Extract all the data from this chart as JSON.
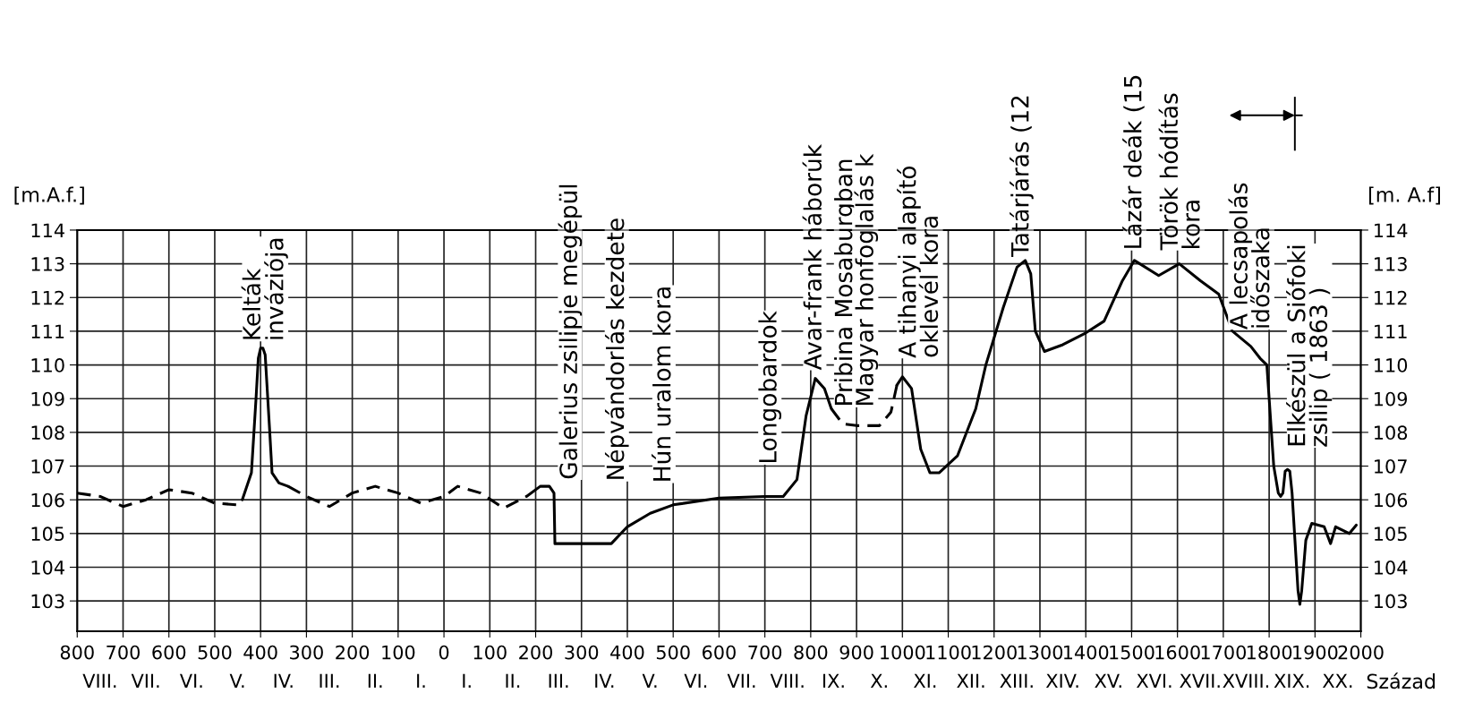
{
  "chart_data": {
    "type": "line",
    "ylabel": "[m.A.f.]",
    "y2label": "[m. A.f]",
    "xlim": [
      -800,
      2000
    ],
    "xticks": [
      {
        "value": -800,
        "label": "800"
      },
      {
        "value": -700,
        "label": "700"
      },
      {
        "value": -600,
        "label": "600"
      },
      {
        "value": -500,
        "label": "500"
      },
      {
        "value": -400,
        "label": "400"
      },
      {
        "value": -300,
        "label": "300"
      },
      {
        "value": -200,
        "label": "200"
      },
      {
        "value": -100,
        "label": "100"
      },
      0,
      100,
      200,
      300,
      400,
      500,
      600,
      700,
      800,
      900,
      1000,
      1100,
      1200,
      1300,
      1400,
      1500,
      1600,
      1700,
      1800,
      1900,
      2000
    ],
    "ylim": [
      102.1,
      114
    ],
    "yticks": [
      103,
      104,
      105,
      106,
      107,
      108,
      109,
      110,
      111,
      112,
      113,
      114
    ],
    "y2lim": [
      102.1,
      114
    ],
    "y2ticks": [
      103,
      104,
      105,
      106,
      107,
      108,
      109,
      110,
      111,
      112,
      113,
      114
    ],
    "grid": true,
    "series": [
      {
        "color": "#000000",
        "line_style": "dashed",
        "x": [
          -800,
          -750,
          -700,
          -650,
          -600,
          -550,
          -500,
          -450,
          -440
        ],
        "values": [
          106.2,
          106.1,
          105.8,
          106.0,
          106.3,
          106.2,
          105.9,
          105.85,
          106.0
        ]
      },
      {
        "color": "#000000",
        "line_style": "solid",
        "x": [
          -440,
          -420,
          -410,
          -405,
          -400,
          -395,
          -390,
          -380,
          -375,
          -360,
          -340
        ],
        "values": [
          106.0,
          106.8,
          109.0,
          110.2,
          110.5,
          110.5,
          110.3,
          108.0,
          106.8,
          106.5,
          106.4
        ]
      },
      {
        "color": "#000000",
        "line_style": "dashed",
        "x": [
          -340,
          -300,
          -250,
          -200,
          -150,
          -100,
          -50,
          0,
          30,
          80,
          130,
          180
        ],
        "values": [
          106.4,
          106.1,
          105.8,
          106.2,
          106.4,
          106.2,
          105.9,
          106.1,
          106.4,
          106.2,
          105.75,
          106.1
        ]
      },
      {
        "color": "#000000",
        "line_style": "solid",
        "x": [
          180,
          210,
          230,
          240,
          242,
          300,
          365,
          400,
          450,
          500,
          600,
          700,
          740,
          770,
          790,
          810,
          830,
          845
        ],
        "values": [
          106.1,
          106.4,
          106.4,
          106.2,
          104.7,
          104.7,
          104.7,
          105.2,
          105.6,
          105.85,
          106.05,
          106.1,
          106.1,
          106.6,
          108.5,
          109.6,
          109.3,
          108.7
        ]
      },
      {
        "color": "#000000",
        "line_style": "dashed",
        "x": [
          845,
          870,
          900,
          950,
          975,
          988
        ],
        "values": [
          108.7,
          108.25,
          108.2,
          108.2,
          108.6,
          109.4
        ]
      },
      {
        "color": "#000000",
        "line_style": "solid",
        "x": [
          988,
          1000,
          1020,
          1040,
          1060,
          1080,
          1120,
          1160,
          1182,
          1220,
          1250,
          1268,
          1280,
          1290,
          1310,
          1350,
          1400,
          1440,
          1480,
          1506,
          1559,
          1604,
          1650,
          1690,
          1720,
          1760,
          1780,
          1795,
          1810,
          1820,
          1825,
          1830,
          1835,
          1840,
          1845,
          1850,
          1863,
          1867,
          1871,
          1880,
          1893,
          1920,
          1934,
          1945,
          1960,
          1975,
          1990
        ],
        "values": [
          109.4,
          109.65,
          109.3,
          107.5,
          106.8,
          106.8,
          107.3,
          108.7,
          110.0,
          111.7,
          112.9,
          113.1,
          112.7,
          111.0,
          110.4,
          110.6,
          110.95,
          111.3,
          112.5,
          113.1,
          112.65,
          113.0,
          112.5,
          112.1,
          111.0,
          110.55,
          110.2,
          110.0,
          107.0,
          106.2,
          106.1,
          106.2,
          106.85,
          106.9,
          106.85,
          106.2,
          103.3,
          102.9,
          103.3,
          104.8,
          105.3,
          105.2,
          104.7,
          105.2,
          105.1,
          105.0,
          105.25
        ]
      }
    ],
    "annotations": [
      "Kelták\ninváziója",
      "Galerius zsilipje megépül",
      "Népvándorlás kezdete",
      "Hún uralom kora",
      "Longobardok",
      "Avar-frank háborúk",
      "Pribina Mosaburgban",
      "Magyar honfoglalás k",
      "A tihanyi alapító\noklevél kora",
      "Tatárjárás (12",
      "Lázár deák (15",
      "Török hódítás\nkora",
      "A lecsapolás\nidőszaka",
      "Elkészül a Siófoki\nzsilip ( 1863 )",
      "VIII.",
      "VII.",
      "VI.",
      "V.",
      "IV.",
      "III.",
      "II.",
      "I.",
      "I.",
      "II.",
      "III.",
      "IV.",
      "V.",
      "VI.",
      "VII.",
      "VIII.",
      "IX.",
      "X.",
      "XI.",
      "XII.",
      "XIII.",
      "XIV.",
      "XV.",
      "XVI.",
      "XVII.",
      "XVIII.",
      "XIX.",
      "XX.",
      "Század"
    ]
  }
}
